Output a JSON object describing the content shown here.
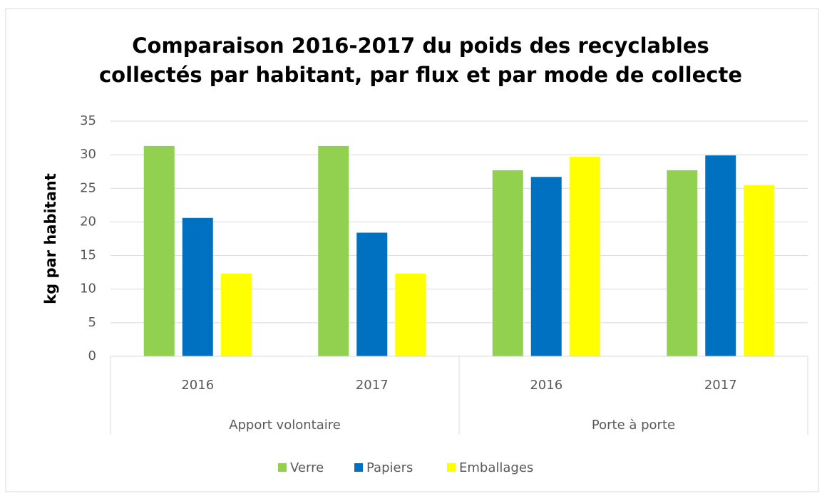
{
  "chart_data": {
    "type": "bar",
    "title": [
      "Comparaison 2016-2017 du poids des recyclables",
      "collectés par habitant, par flux et par mode de collecte"
    ],
    "y_label": "kg par habitant",
    "groups": [
      {
        "name": "Apport volontaire",
        "categories": [
          "2016",
          "2017"
        ]
      },
      {
        "name": "Porte à porte",
        "categories": [
          "2016",
          "2017"
        ]
      }
    ],
    "series": [
      {
        "name": "Verre",
        "color": "#92d050",
        "values": [
          31.3,
          31.3,
          27.7,
          27.7
        ]
      },
      {
        "name": "Papiers",
        "color": "#0070c0",
        "values": [
          20.6,
          18.4,
          26.7,
          29.9
        ]
      },
      {
        "name": "Emballages",
        "color": "#ffff00",
        "values": [
          12.3,
          12.3,
          29.7,
          25.5
        ]
      }
    ],
    "ylim": [
      0,
      35
    ],
    "yticks": [
      0,
      5,
      10,
      15,
      20,
      25,
      30,
      35
    ],
    "grid": true,
    "legend": "bottom"
  }
}
